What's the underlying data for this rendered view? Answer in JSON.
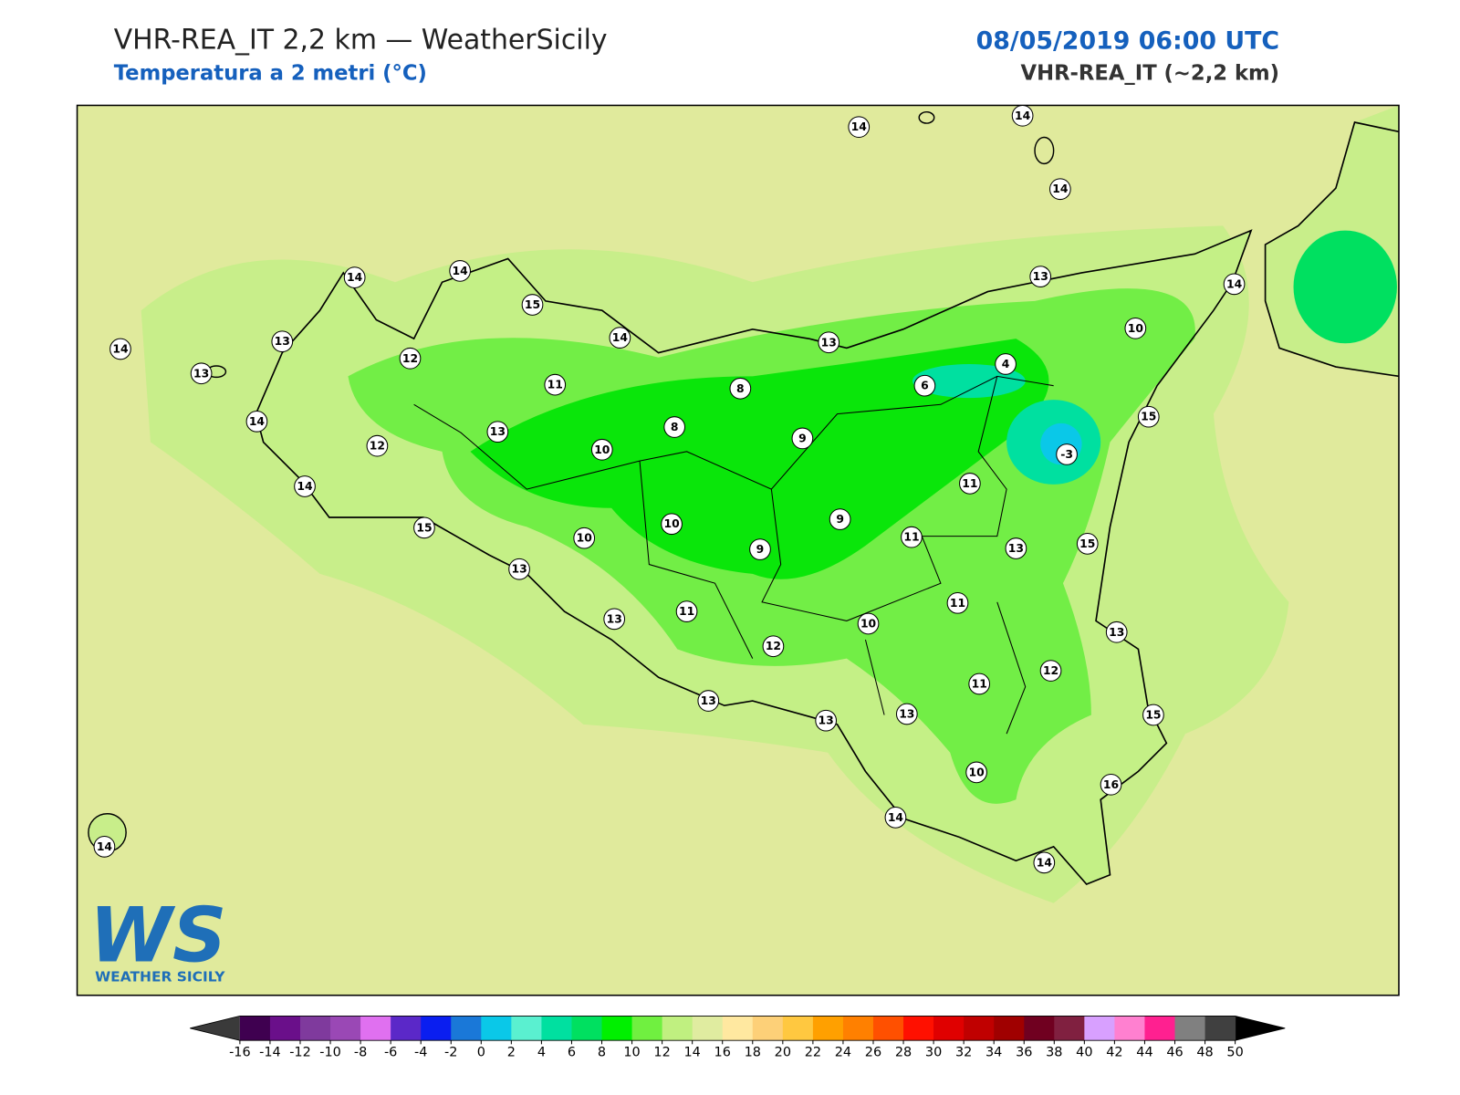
{
  "header": {
    "title": "VHR-REA_IT 2,2 km — WeatherSicily",
    "subtitle": "Temperatura a 2 metri (°C)",
    "datetime": "08/05/2019 06:00 UTC",
    "model": "VHR-REA_IT (~2,2 km)"
  },
  "logo": {
    "mark": "WS",
    "name": "WEATHER SICILY"
  },
  "stations": [
    14,
    14,
    14,
    14,
    14,
    15,
    14,
    13,
    13,
    12,
    14,
    13,
    13,
    14,
    10,
    4,
    6,
    11,
    8,
    14,
    13,
    8,
    9,
    15,
    -3,
    12,
    10,
    14,
    11,
    15,
    10,
    9,
    10,
    9,
    11,
    13,
    15,
    13,
    11,
    13,
    11,
    10,
    12,
    13,
    11,
    12,
    13,
    13,
    13,
    15,
    10,
    16,
    14,
    14,
    14
  ],
  "colorbar": {
    "ticks": [
      -16,
      -14,
      -12,
      -10,
      -8,
      -6,
      -4,
      -2,
      0,
      2,
      4,
      6,
      8,
      10,
      12,
      14,
      16,
      18,
      20,
      22,
      24,
      26,
      28,
      30,
      32,
      34,
      36,
      38,
      40,
      42,
      44,
      46,
      48,
      50
    ],
    "under_color": "#3a3a3a",
    "over_color": "#000000",
    "colors": [
      "#3f0050",
      "#6a0f8a",
      "#7f3a9d",
      "#9a48b5",
      "#e070f0",
      "#5b28c8",
      "#0a1ef0",
      "#1a78d8",
      "#0ac8e8",
      "#5af0d0",
      "#00e0a0",
      "#00e060",
      "#00f000",
      "#70f040",
      "#c0f080",
      "#e0eca0",
      "#ffe8a0",
      "#fdd078",
      "#ffc840",
      "#ffa000",
      "#ff8000",
      "#ff5000",
      "#ff1000",
      "#e00000",
      "#c00000",
      "#a00000",
      "#700020",
      "#802040",
      "#d8a0ff",
      "#ff80d0",
      "#ff2090",
      "#808080",
      "#404040"
    ]
  }
}
